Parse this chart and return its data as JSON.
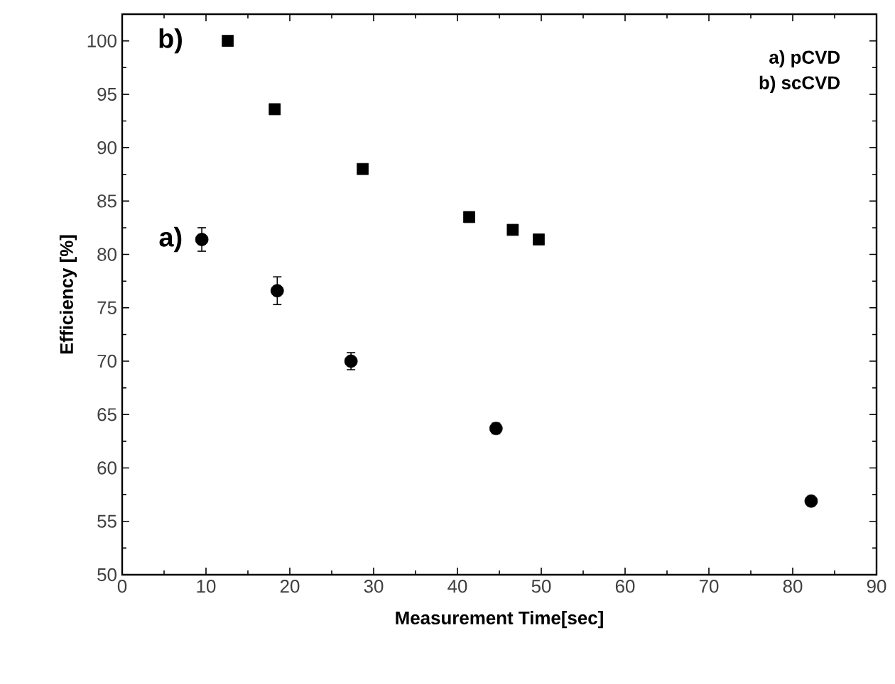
{
  "chart_data": {
    "type": "scatter",
    "xlabel": "Measurement Time[sec]",
    "ylabel": "Efficiency [%]",
    "xlim": [
      0,
      90
    ],
    "ylim": [
      50,
      102.5
    ],
    "xticks": [
      0,
      10,
      20,
      30,
      40,
      50,
      60,
      70,
      80,
      90
    ],
    "yticks": [
      50,
      55,
      60,
      65,
      70,
      75,
      80,
      85,
      90,
      95,
      100
    ],
    "series": [
      {
        "name": "a)",
        "color": "#000000",
        "marker": "circle",
        "x": [
          9.5,
          18.5,
          27.3,
          44.6,
          82.2
        ],
        "values": [
          81.4,
          76.6,
          70.0,
          63.7,
          56.9
        ],
        "errors": [
          1.1,
          1.3,
          0.8,
          0.5,
          0.4
        ]
      },
      {
        "name": "b)",
        "color": "#000000",
        "marker": "square",
        "x": [
          12.6,
          18.2,
          28.7,
          41.4,
          46.6,
          49.7
        ],
        "values": [
          100.0,
          93.6,
          88.0,
          83.5,
          82.3,
          81.4
        ]
      }
    ],
    "annotations": [
      "a)   pCVD",
      "b) scCVD"
    ],
    "legend": "left",
    "grid": false
  }
}
